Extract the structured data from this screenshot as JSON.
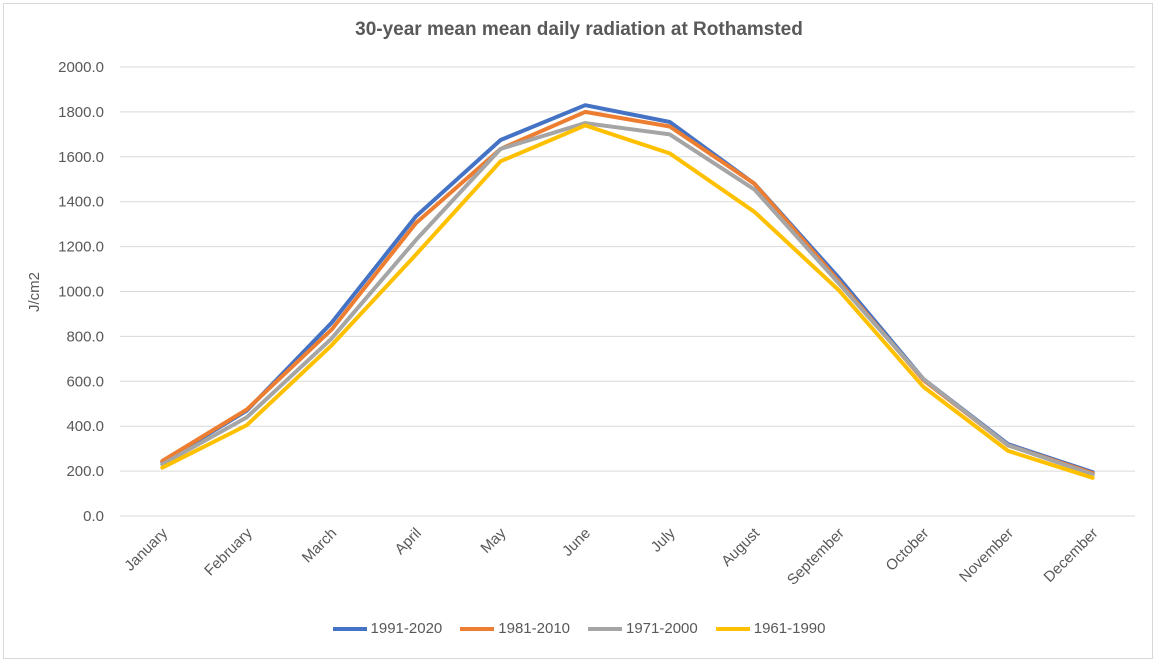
{
  "chart_data": {
    "type": "line",
    "title": "30-year mean mean daily radiation at Rothamsted",
    "xlabel": "",
    "ylabel": "J/cm2",
    "ylim": [
      0,
      2000
    ],
    "yticks": [
      "0.0",
      "200.0",
      "400.0",
      "600.0",
      "800.0",
      "1000.0",
      "1200.0",
      "1400.0",
      "1600.0",
      "1800.0",
      "2000.0"
    ],
    "categories": [
      "January",
      "February",
      "March",
      "April",
      "May",
      "June",
      "July",
      "August",
      "September",
      "October",
      "November",
      "December"
    ],
    "grid": true,
    "legend_position": "bottom",
    "series": [
      {
        "name": "1991-2020",
        "color": "#4472C4",
        "values": [
          240,
          470,
          860,
          1335,
          1675,
          1830,
          1755,
          1480,
          1060,
          610,
          320,
          195
        ]
      },
      {
        "name": "1981-2010",
        "color": "#ED7D31",
        "values": [
          245,
          475,
          830,
          1305,
          1635,
          1800,
          1735,
          1480,
          1045,
          605,
          315,
          190
        ]
      },
      {
        "name": "1971-2000",
        "color": "#A5A5A5",
        "values": [
          230,
          440,
          790,
          1230,
          1635,
          1750,
          1700,
          1455,
          1035,
          610,
          315,
          185
        ]
      },
      {
        "name": "1961-1990",
        "color": "#FFC000",
        "values": [
          215,
          405,
          760,
          1165,
          1580,
          1740,
          1615,
          1355,
          1005,
          575,
          290,
          170
        ]
      }
    ]
  }
}
